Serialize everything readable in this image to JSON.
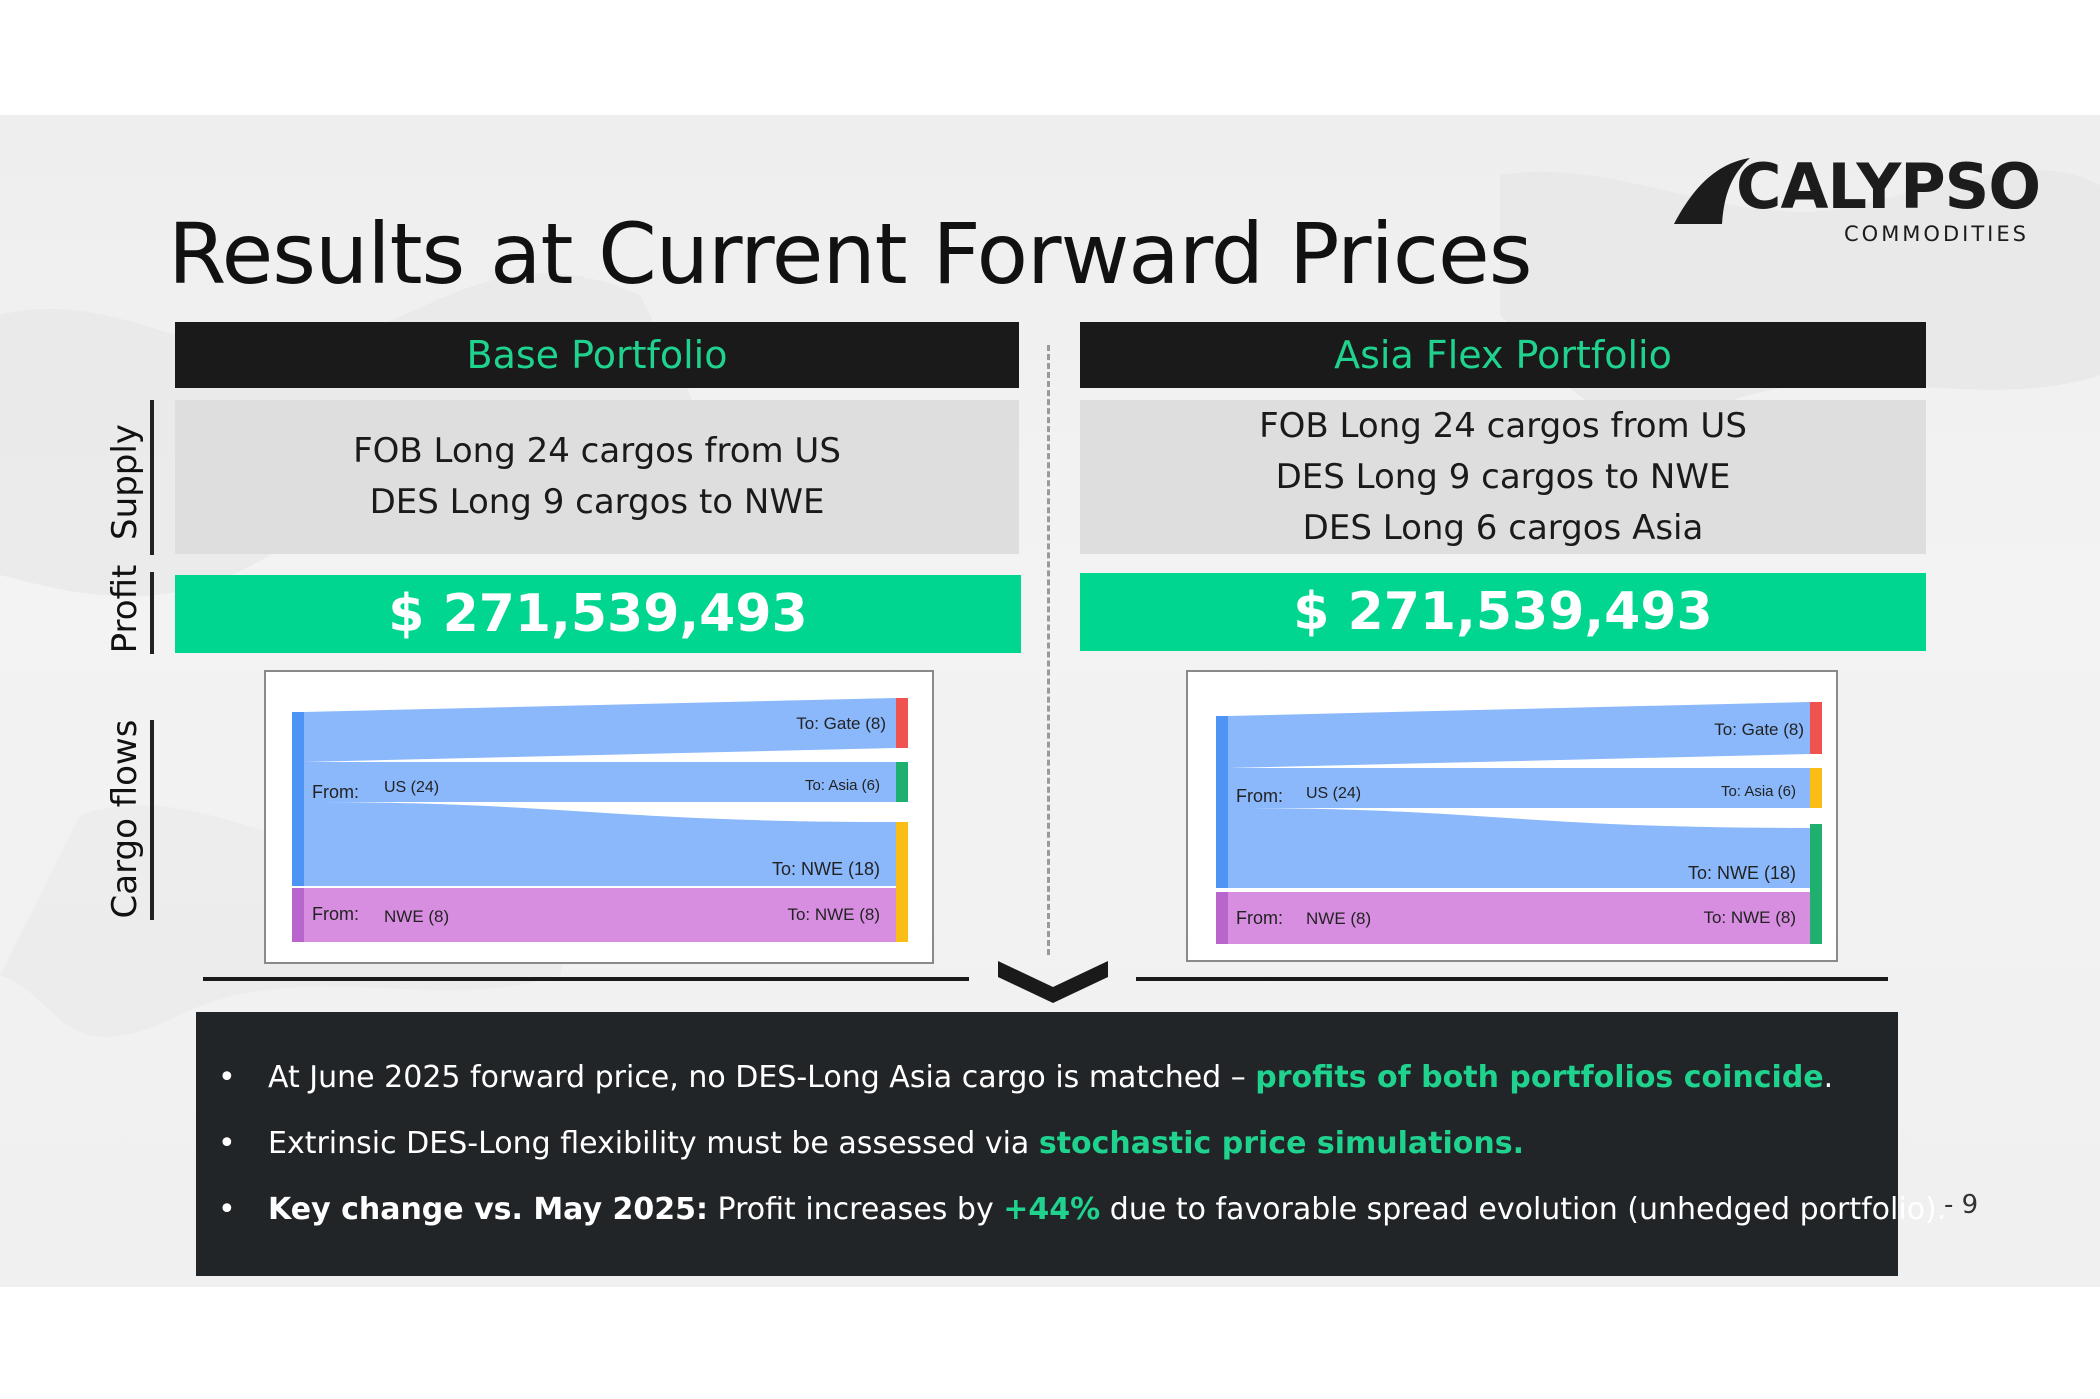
{
  "slide": {
    "title": "Results at Current Forward Prices",
    "page_number": "- 9"
  },
  "logo": {
    "name": "CALYPSO",
    "subtitle": "COMMODITIES"
  },
  "side_labels": {
    "supply": "Supply",
    "profit": "Profit",
    "cargo_flows": "Cargo flows"
  },
  "panels": [
    {
      "header": "Base Portfolio",
      "supply_lines": [
        "FOB Long 24 cargos from US",
        "DES Long 9 cargos to NWE"
      ],
      "profit": "$ 271,539,493",
      "sankey": {
        "from_label": "From:",
        "sources": [
          {
            "name": "US (24)",
            "color": "#4d94f5"
          },
          {
            "name": "NWE (8)",
            "color": "#b866cc"
          }
        ],
        "targets": [
          {
            "name": "To: Gate (8)",
            "color": "#ef5350"
          },
          {
            "name": "To: Asia (6)",
            "color": "#1faf6f"
          },
          {
            "name": "To: NWE (18)",
            "color": "#f9bd16"
          },
          {
            "name": "To: NWE (8)",
            "color": "#f9bd16"
          }
        ]
      }
    },
    {
      "header": "Asia Flex Portfolio",
      "supply_lines": [
        "FOB Long 24 cargos from US",
        "DES Long 9 cargos to NWE",
        "DES Long 6 cargos Asia"
      ],
      "profit": "$ 271,539,493",
      "sankey": {
        "from_label": "From:",
        "sources": [
          {
            "name": "US (24)",
            "color": "#4d94f5"
          },
          {
            "name": "NWE (8)",
            "color": "#b866cc"
          }
        ],
        "targets": [
          {
            "name": "To: Gate (8)",
            "color": "#ef5350"
          },
          {
            "name": "To: Asia (6)",
            "color": "#f9bd16"
          },
          {
            "name": "To: NWE (18)",
            "color": "#1faf6f"
          },
          {
            "name": "To: NWE (8)",
            "color": "#1faf6f"
          }
        ]
      }
    }
  ],
  "bullets": [
    {
      "dot": "•",
      "parts": [
        {
          "text": "At June 2025 forward price, no DES-Long Asia cargo is matched – ",
          "style": "normal"
        },
        {
          "text": "profits of both portfolios coincide",
          "style": "highlight"
        },
        {
          "text": ".",
          "style": "normal"
        }
      ]
    },
    {
      "dot": "•",
      "parts": [
        {
          "text": "Extrinsic DES-Long flexibility must be assessed via ",
          "style": "normal"
        },
        {
          "text": "stochastic price simulations.",
          "style": "highlight"
        }
      ]
    },
    {
      "dot": "•",
      "parts": [
        {
          "text": "Key change vs. May 2025:",
          "style": "bold"
        },
        {
          "text": " Profit increases by ",
          "style": "normal"
        },
        {
          "text": "+44%",
          "style": "highlight"
        },
        {
          "text": " due to favorable spread evolution (unhedged portfolio).",
          "style": "normal"
        }
      ]
    }
  ],
  "colors": {
    "accent_green": "#1fd28e",
    "profit_green": "#00d68f",
    "header_dark": "#1a1a1a",
    "bottom_box": "#212527"
  }
}
